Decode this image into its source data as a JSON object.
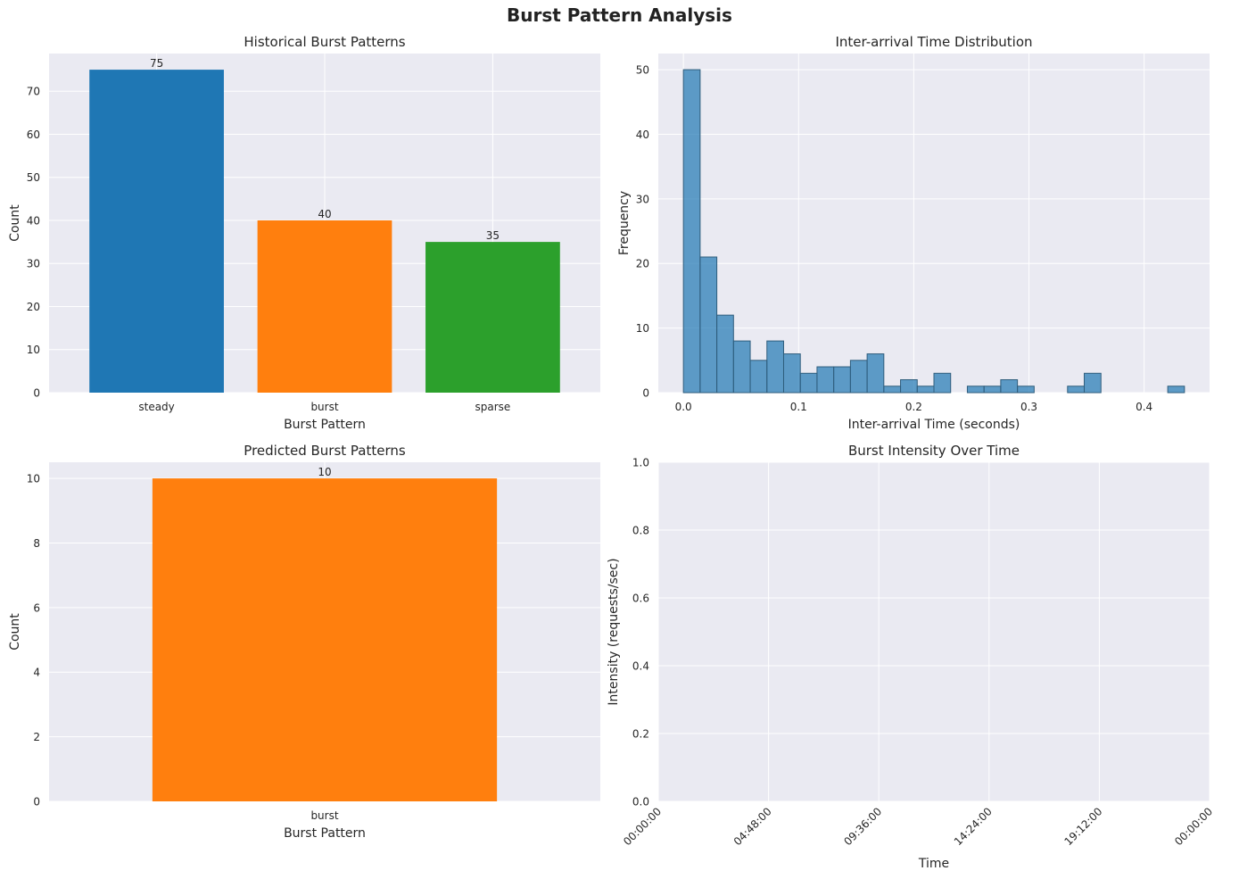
{
  "figure": {
    "title": "Burst Pattern Analysis"
  },
  "colors": {
    "background": "#eaeaf2",
    "grid": "#ffffff",
    "text": "#262626",
    "blue": "#1f77b4",
    "orange": "#ff7f0e",
    "green": "#2ca02c",
    "hist_fill": "#5b9bc8",
    "hist_edge": "#2f5d7c"
  },
  "chart_data": [
    {
      "id": "historical",
      "type": "bar",
      "title": "Historical Burst Patterns",
      "xlabel": "Burst Pattern",
      "ylabel": "Count",
      "categories": [
        "steady",
        "burst",
        "sparse"
      ],
      "values": [
        75,
        40,
        35
      ],
      "data_labels": [
        "75",
        "40",
        "35"
      ],
      "bar_colors": [
        "#1f77b4",
        "#ff7f0e",
        "#2ca02c"
      ],
      "ylim": [
        0,
        78.75
      ],
      "yticks": [
        0,
        10,
        20,
        30,
        40,
        50,
        60,
        70
      ],
      "ytick_labels": [
        "0",
        "10",
        "20",
        "30",
        "40",
        "50",
        "60",
        "70"
      ],
      "grid": true
    },
    {
      "id": "interarrival",
      "type": "bar",
      "title": "Inter-arrival Time Distribution",
      "xlabel": "Inter-arrival Time (seconds)",
      "ylabel": "Frequency",
      "bins": [
        {
          "x0": 0.0,
          "x1": 0.0145,
          "count": 50
        },
        {
          "x0": 0.0145,
          "x1": 0.029,
          "count": 21
        },
        {
          "x0": 0.029,
          "x1": 0.0435,
          "count": 12
        },
        {
          "x0": 0.0435,
          "x1": 0.058,
          "count": 8
        },
        {
          "x0": 0.058,
          "x1": 0.0725,
          "count": 5
        },
        {
          "x0": 0.0725,
          "x1": 0.087,
          "count": 8
        },
        {
          "x0": 0.087,
          "x1": 0.1015,
          "count": 6
        },
        {
          "x0": 0.1015,
          "x1": 0.116,
          "count": 3
        },
        {
          "x0": 0.116,
          "x1": 0.1305,
          "count": 4
        },
        {
          "x0": 0.1305,
          "x1": 0.145,
          "count": 4
        },
        {
          "x0": 0.145,
          "x1": 0.1595,
          "count": 5
        },
        {
          "x0": 0.1595,
          "x1": 0.174,
          "count": 6
        },
        {
          "x0": 0.174,
          "x1": 0.1885,
          "count": 1
        },
        {
          "x0": 0.1885,
          "x1": 0.203,
          "count": 2
        },
        {
          "x0": 0.203,
          "x1": 0.2175,
          "count": 1
        },
        {
          "x0": 0.2175,
          "x1": 0.232,
          "count": 3
        },
        {
          "x0": 0.232,
          "x1": 0.2465,
          "count": 0
        },
        {
          "x0": 0.2465,
          "x1": 0.261,
          "count": 1
        },
        {
          "x0": 0.261,
          "x1": 0.2755,
          "count": 1
        },
        {
          "x0": 0.2755,
          "x1": 0.29,
          "count": 2
        },
        {
          "x0": 0.29,
          "x1": 0.3045,
          "count": 1
        },
        {
          "x0": 0.3045,
          "x1": 0.319,
          "count": 0
        },
        {
          "x0": 0.319,
          "x1": 0.3335,
          "count": 0
        },
        {
          "x0": 0.3335,
          "x1": 0.348,
          "count": 1
        },
        {
          "x0": 0.348,
          "x1": 0.3625,
          "count": 3
        },
        {
          "x0": 0.3625,
          "x1": 0.377,
          "count": 0
        },
        {
          "x0": 0.377,
          "x1": 0.3915,
          "count": 0
        },
        {
          "x0": 0.3915,
          "x1": 0.406,
          "count": 0
        },
        {
          "x0": 0.406,
          "x1": 0.4205,
          "count": 0
        },
        {
          "x0": 0.4205,
          "x1": 0.435,
          "count": 1
        }
      ],
      "xlim": [
        -0.0218,
        0.4568
      ],
      "xticks": [
        0.0,
        0.1,
        0.2,
        0.3,
        0.4
      ],
      "xtick_labels": [
        "0.0",
        "0.1",
        "0.2",
        "0.3",
        "0.4"
      ],
      "ylim": [
        0,
        52.5
      ],
      "yticks": [
        0,
        10,
        20,
        30,
        40,
        50
      ],
      "ytick_labels": [
        "0",
        "10",
        "20",
        "30",
        "40",
        "50"
      ],
      "alpha": 0.7,
      "grid": true
    },
    {
      "id": "predicted",
      "type": "bar",
      "title": "Predicted Burst Patterns",
      "xlabel": "Burst Pattern",
      "ylabel": "Count",
      "categories": [
        "burst"
      ],
      "values": [
        10
      ],
      "data_labels": [
        "10"
      ],
      "bar_colors": [
        "#ff7f0e"
      ],
      "ylim": [
        0,
        10.5
      ],
      "yticks": [
        0,
        2,
        4,
        6,
        8,
        10
      ],
      "ytick_labels": [
        "0",
        "2",
        "4",
        "6",
        "8",
        "10"
      ],
      "grid": true
    },
    {
      "id": "intensity",
      "type": "line",
      "title": "Burst Intensity Over Time",
      "xlabel": "Time",
      "ylabel": "Intensity (requests/sec)",
      "series": [],
      "xtick_labels": [
        "00:00:00",
        "04:48:00",
        "09:36:00",
        "14:24:00",
        "19:12:00",
        "00:00:00"
      ],
      "xtick_rotation": 45,
      "ylim": [
        0,
        1
      ],
      "yticks": [
        0,
        0.2,
        0.4,
        0.6,
        0.8,
        1.0
      ],
      "ytick_labels": [
        "0.0",
        "0.2",
        "0.4",
        "0.6",
        "0.8",
        "1.0"
      ],
      "grid": true
    }
  ]
}
